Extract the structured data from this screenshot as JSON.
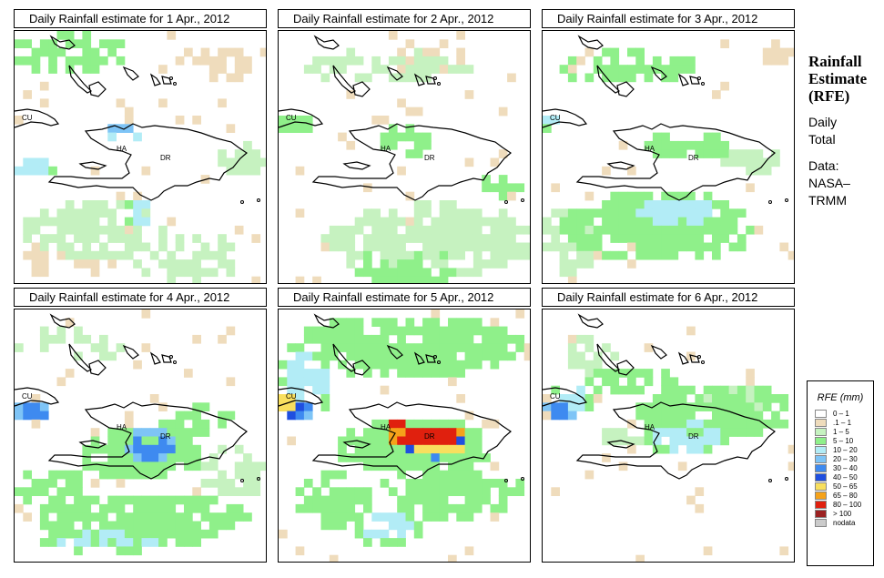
{
  "panels": [
    {
      "title": "Daily Rainfall estimate for  1 Apr., 2012"
    },
    {
      "title": "Daily Rainfall estimate for  2 Apr., 2012"
    },
    {
      "title": "Daily Rainfall estimate for  3 Apr., 2012"
    },
    {
      "title": "Daily Rainfall estimate for  4 Apr., 2012"
    },
    {
      "title": "Daily Rainfall estimate for  5 Apr., 2012"
    },
    {
      "title": "Daily Rainfall estimate for  6 Apr., 2012"
    }
  ],
  "country_labels": {
    "cu": "CU",
    "ha": "HA",
    "dr": "DR"
  },
  "side_info": {
    "heading_line1": "Rainfall",
    "heading_line2": "Estimate",
    "heading_line3": "(RFE)",
    "daily": "Daily",
    "total": "Total",
    "data_label": "Data:",
    "source_line1": "NASA–",
    "source_line2": "TRMM"
  },
  "legend": {
    "title": "RFE (mm)",
    "classes": [
      {
        "label": "0 – 1",
        "color": "#ffffff"
      },
      {
        "label": ".1 – 1",
        "color": "#efdcbc"
      },
      {
        "label": "1 – 5",
        "color": "#c6f2c0"
      },
      {
        "label": "5 – 10",
        "color": "#8ff08a"
      },
      {
        "label": "10 – 20",
        "color": "#b2ecf6"
      },
      {
        "label": "20 – 30",
        "color": "#7ec4f6"
      },
      {
        "label": "30 – 40",
        "color": "#3e8af0"
      },
      {
        "label": "40 – 50",
        "color": "#1f4fe0"
      },
      {
        "label": "50 – 65",
        "color": "#f8df5e"
      },
      {
        "label": "65 – 80",
        "color": "#f5a21a"
      },
      {
        "label": "80 – 100",
        "color": "#e0200e"
      },
      {
        "label": "> 100",
        "color": "#9c2222"
      },
      {
        "label": "nodata",
        "color": "#cbcbcb"
      }
    ]
  }
}
